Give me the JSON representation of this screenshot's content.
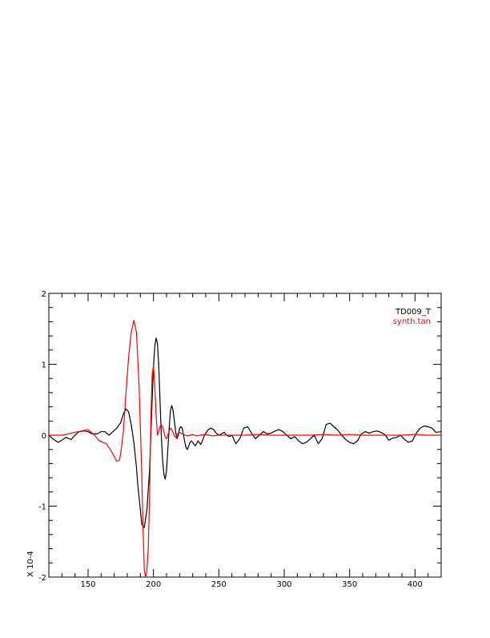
{
  "chart_data": {
    "type": "line",
    "title": "",
    "xlabel": "",
    "ylabel": "X 10-4",
    "xlim": [
      120,
      420
    ],
    "ylim": [
      -2,
      2
    ],
    "xticks": [
      150,
      200,
      250,
      300,
      350,
      400
    ],
    "yticks": [
      -2,
      -1,
      0,
      1,
      2
    ],
    "grid": false,
    "legend_position": "top-right",
    "series": [
      {
        "name": "TD009_T",
        "color": "#000000",
        "x": [
          120,
          123,
          127,
          130,
          133,
          137,
          140,
          143,
          147,
          150,
          153,
          157,
          160,
          163,
          166,
          169,
          172,
          175,
          177,
          179,
          181,
          183,
          185,
          187,
          188,
          190,
          191,
          193,
          195,
          197,
          198,
          199,
          200,
          201,
          202,
          203,
          204,
          205,
          206,
          207,
          208,
          209,
          210,
          211,
          212,
          213,
          214,
          215,
          216,
          217,
          218,
          219,
          220,
          221,
          222,
          223,
          224,
          225,
          226,
          227,
          228,
          229,
          230,
          231,
          232,
          233,
          234,
          235,
          236,
          237,
          238,
          239,
          240,
          242,
          244,
          246,
          248,
          250,
          252,
          254,
          256,
          258,
          260,
          263,
          266,
          269,
          272,
          275,
          278,
          281,
          284,
          287,
          290,
          293,
          296,
          299,
          302,
          305,
          308,
          311,
          314,
          317,
          320,
          323,
          326,
          329,
          332,
          335,
          338,
          341,
          344,
          347,
          350,
          353,
          356,
          359,
          362,
          365,
          368,
          371,
          374,
          377,
          380,
          383,
          386,
          389,
          392,
          395,
          398,
          401,
          404,
          407,
          410,
          413,
          416,
          420
        ],
        "y": [
          0.0,
          -0.05,
          -0.1,
          -0.07,
          -0.03,
          -0.06,
          0.0,
          0.05,
          0.06,
          0.05,
          0.02,
          0.02,
          0.05,
          0.05,
          0.0,
          0.05,
          0.1,
          0.18,
          0.3,
          0.37,
          0.33,
          0.15,
          -0.1,
          -0.45,
          -0.7,
          -1.05,
          -1.25,
          -1.3,
          -1.05,
          -0.5,
          0.0,
          0.5,
          0.95,
          1.25,
          1.37,
          1.3,
          1.0,
          0.5,
          0.0,
          -0.35,
          -0.55,
          -0.62,
          -0.5,
          -0.2,
          0.1,
          0.35,
          0.42,
          0.35,
          0.2,
          0.05,
          -0.05,
          0.0,
          0.1,
          0.12,
          0.1,
          0.0,
          -0.1,
          -0.18,
          -0.2,
          -0.15,
          -0.1,
          -0.08,
          -0.1,
          -0.13,
          -0.15,
          -0.12,
          -0.08,
          -0.1,
          -0.13,
          -0.1,
          -0.05,
          0.0,
          0.03,
          0.08,
          0.1,
          0.08,
          0.03,
          0.0,
          0.02,
          0.04,
          0.0,
          -0.02,
          0.0,
          -0.12,
          -0.05,
          0.1,
          0.12,
          0.03,
          -0.05,
          0.0,
          0.05,
          0.02,
          0.03,
          0.06,
          0.08,
          0.05,
          0.0,
          -0.05,
          -0.02,
          -0.08,
          -0.12,
          -0.1,
          -0.05,
          0.0,
          -0.12,
          -0.05,
          0.15,
          0.17,
          0.12,
          0.07,
          0.0,
          -0.06,
          -0.1,
          -0.12,
          -0.08,
          0.02,
          0.05,
          0.03,
          0.05,
          0.06,
          0.04,
          0.01,
          -0.07,
          -0.04,
          -0.03,
          0.0,
          -0.06,
          -0.1,
          -0.08,
          0.03,
          0.1,
          0.13,
          0.12,
          0.1,
          0.04,
          0.05
        ]
      },
      {
        "name": "synth.tan",
        "color": "#ff0000",
        "x": [
          120,
          125,
          130,
          135,
          140,
          145,
          150,
          155,
          158,
          161,
          164,
          167,
          170,
          172,
          174,
          175,
          177,
          179,
          181,
          183,
          185,
          187,
          189,
          191,
          192,
          193,
          194,
          195,
          196,
          197,
          198,
          199,
          200,
          201,
          202,
          203,
          204,
          205,
          206,
          207,
          208,
          209,
          210,
          211,
          212,
          213,
          214,
          215,
          216,
          217,
          218,
          219,
          220,
          222,
          224,
          226,
          228,
          230,
          233,
          236,
          240,
          245,
          250,
          260,
          270,
          280,
          290,
          300,
          310,
          320,
          330,
          340,
          350,
          360,
          370,
          380,
          390,
          400,
          410,
          420
        ],
        "y": [
          0.0,
          0.0,
          0.0,
          0.02,
          0.04,
          0.06,
          0.08,
          0.0,
          -0.07,
          -0.1,
          -0.12,
          -0.2,
          -0.3,
          -0.37,
          -0.35,
          -0.25,
          0.05,
          0.6,
          1.1,
          1.45,
          1.62,
          1.45,
          0.7,
          -0.5,
          -1.3,
          -1.9,
          -2.0,
          -1.9,
          -1.6,
          -0.9,
          0.2,
          0.85,
          0.98,
          0.7,
          0.3,
          0.0,
          0.05,
          0.12,
          0.15,
          0.12,
          0.05,
          -0.03,
          -0.05,
          0.0,
          0.06,
          0.1,
          0.08,
          0.04,
          -0.01,
          -0.03,
          0.0,
          0.03,
          0.04,
          0.02,
          0.0,
          -0.01,
          0.0,
          0.01,
          -0.01,
          0.0,
          0.01,
          -0.01,
          0.0,
          0.0,
          0.0,
          0.01,
          0.0,
          0.0,
          0.0,
          0.0,
          0.01,
          0.0,
          0.01,
          0.0,
          0.0,
          0.0,
          0.0,
          0.01,
          0.0,
          0.0
        ]
      }
    ]
  }
}
